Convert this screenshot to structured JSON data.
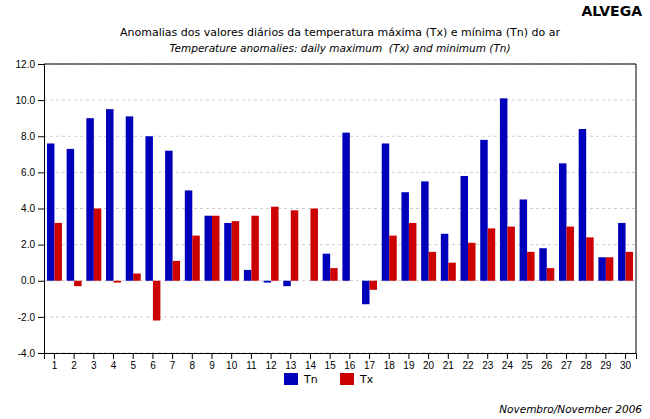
{
  "chart_data": {
    "type": "bar",
    "title": "Anomalias dos valores diários da temperatura máxima (Tx) e mínima (Tn) do ar",
    "subtitle": "Temperature anomalies: daily maximum  (Tx) and minimum (Tn)",
    "annotations": [
      "ALVEGA",
      "Novembro/November 2006"
    ],
    "categories": [
      "1",
      "2",
      "3",
      "4",
      "5",
      "6",
      "7",
      "8",
      "9",
      "10",
      "11",
      "12",
      "13",
      "14",
      "15",
      "16",
      "17",
      "18",
      "19",
      "20",
      "21",
      "22",
      "23",
      "24",
      "25",
      "26",
      "27",
      "28",
      "29",
      "30"
    ],
    "series": [
      {
        "name": "Tn",
        "color": "#0000BB",
        "values": [
          7.6,
          7.3,
          9.0,
          9.5,
          9.1,
          8.0,
          7.2,
          5.0,
          3.6,
          3.2,
          0.6,
          -0.1,
          -0.3,
          0.0,
          1.5,
          8.2,
          -1.3,
          7.6,
          4.9,
          5.5,
          2.6,
          5.8,
          7.8,
          10.1,
          4.5,
          1.8,
          6.5,
          8.4,
          1.3,
          3.2
        ]
      },
      {
        "name": "Tx",
        "color": "#CC0000",
        "values": [
          3.2,
          -0.3,
          4.0,
          -0.1,
          0.4,
          -2.2,
          1.1,
          2.5,
          3.6,
          3.3,
          3.6,
          4.1,
          3.9,
          4.0,
          0.7,
          0.0,
          -0.5,
          2.5,
          3.2,
          1.6,
          1.0,
          2.1,
          2.9,
          3.0,
          1.6,
          0.7,
          3.0,
          2.4,
          1.3,
          1.6
        ]
      }
    ],
    "ylim": [
      -4.0,
      12.0
    ],
    "yticks": [
      {
        "value": -4,
        "label": "-4.0"
      },
      {
        "value": -2,
        "label": "-2.0"
      },
      {
        "value": 0,
        "label": "0.0"
      },
      {
        "value": 2,
        "label": "2.0"
      },
      {
        "value": 4,
        "label": "4.0"
      },
      {
        "value": 6,
        "label": "6.0"
      },
      {
        "value": 8,
        "label": "8.0"
      },
      {
        "value": 10,
        "label": "10.0"
      },
      {
        "value": 12,
        "label": "12.0"
      }
    ],
    "grid": true,
    "legend": "bottom"
  }
}
